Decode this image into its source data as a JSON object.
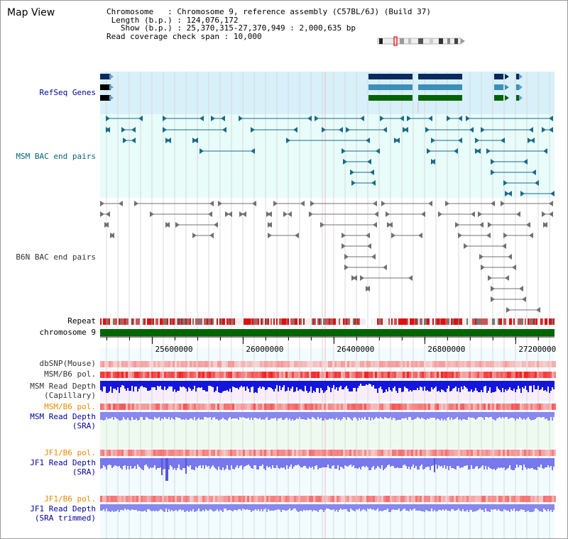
{
  "title": "Map View",
  "info": {
    "chromosome_key": "Chromosome",
    "chromosome_value": "Chromosome 9, reference assembly (C57BL/6J) (Build 37)",
    "length_key": "Length (b.p.)",
    "length_value": "124,076,172",
    "show_key": "Show (b.p.)",
    "show_value": "25,370,315-27,370,949 : 2,000,635 bp",
    "span_key": "Read coverage check span",
    "span_value": "10,000"
  },
  "tracks": {
    "refseq": "RefSeq Genes",
    "msm_bac": "MSM BAC end pairs",
    "b6n_bac": "B6N BAC end pairs",
    "repeat": "Repeat",
    "chromosome": "chromosome 9",
    "dbsnp": "dbSNP(Mouse)",
    "msm_b6_pol_1": "MSM/B6 pol.",
    "msm_depth_cap_1": "MSM Read Depth",
    "msm_depth_cap_2": "(Capillary)",
    "msm_b6_pol_2": "MSM/B6 pol.",
    "msm_depth_sra_1": "MSM Read Depth",
    "msm_depth_sra_2": "(SRA)",
    "jf1_b6_pol_1": "JF1/B6 pol.",
    "jf1_depth_sra_1": "JF1 Read Depth",
    "jf1_depth_sra_2": "(SRA)",
    "jf1_b6_pol_2": "JF1/B6 pol.",
    "jf1_depth_trim_1": "JF1 Read Depth",
    "jf1_depth_trim_2": "(SRA trimmed)"
  },
  "axis": {
    "start": 25370315,
    "end": 27370949,
    "ticks": [
      25600000,
      26000000,
      26400000,
      26800000,
      27200000
    ],
    "tick_labels": [
      "25600000",
      "26000000",
      "26400000",
      "26800000",
      "27200000"
    ]
  },
  "colors": {
    "refseq_bg": "#d8f0fa",
    "msm_bg": "#e8fcfa",
    "b6n_bg": "#ffffff",
    "refseq_dark": "#0a2a5e",
    "refseq_mid": "#3a90b8",
    "refseq_green": "#006400",
    "msm_feature": "#1a6a8a",
    "b6n_feature": "#707070",
    "chromosome_bar": "#006400",
    "msm_label": "#006677",
    "refseq_label": "#000099",
    "b6n_label": "#333333",
    "depth_label": "#000099",
    "pol_label_orange": "#e88a00",
    "msm_cap_depth": "#1515dd",
    "sra_depth": "#8888ee"
  }
}
